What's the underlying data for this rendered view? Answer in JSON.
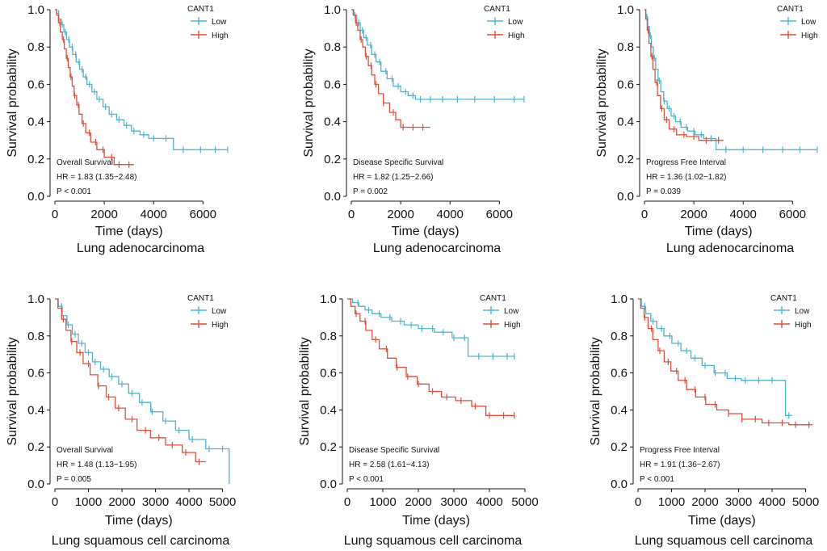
{
  "colors": {
    "low": "#4fb3cf",
    "high": "#dd4f3a",
    "axis": "#111111"
  },
  "chart_data": [
    {
      "type": "line",
      "title": "Lung adenocarcinoma",
      "xlabel": "Time (days)",
      "ylabel": "Survival probability",
      "xlim": [
        0,
        7200
      ],
      "xticks": [
        "0",
        "2000",
        "4000",
        "6000"
      ],
      "ylim": [
        0,
        1
      ],
      "yticks": [
        "0.0",
        "0.2",
        "0.4",
        "0.6",
        "0.8",
        "1.0"
      ],
      "legend_title": "CANT1",
      "annotations": [
        "Overall Survival",
        "HR = 1.83 (1.35−2.48)",
        "P < 0.001"
      ],
      "series": [
        {
          "name": "Low",
          "color_key": "low",
          "x": [
            0,
            80,
            160,
            260,
            360,
            470,
            590,
            720,
            860,
            1000,
            1150,
            1300,
            1500,
            1700,
            1950,
            2200,
            2500,
            2800,
            3100,
            3450,
            3800,
            4250,
            4800,
            5300,
            6000,
            6500,
            7000
          ],
          "y": [
            1.0,
            0.98,
            0.95,
            0.92,
            0.88,
            0.84,
            0.8,
            0.76,
            0.72,
            0.68,
            0.64,
            0.6,
            0.56,
            0.52,
            0.48,
            0.44,
            0.41,
            0.38,
            0.35,
            0.33,
            0.31,
            0.31,
            0.25,
            0.25,
            0.25,
            0.25,
            0.25
          ],
          "censor_x": [
            150,
            300,
            420,
            560,
            700,
            840,
            980,
            1100,
            1250,
            1400,
            1600,
            1800,
            2050,
            2300,
            2600,
            2900,
            3200,
            3600,
            4000,
            4500,
            5200,
            5900,
            6500,
            7000
          ]
        },
        {
          "name": "High",
          "color_key": "high",
          "x": [
            0,
            70,
            140,
            220,
            300,
            380,
            460,
            540,
            620,
            700,
            780,
            880,
            980,
            1100,
            1250,
            1450,
            1700,
            2000,
            2400,
            3200
          ],
          "y": [
            1.0,
            0.97,
            0.93,
            0.88,
            0.84,
            0.79,
            0.74,
            0.69,
            0.64,
            0.59,
            0.54,
            0.49,
            0.44,
            0.39,
            0.34,
            0.29,
            0.25,
            0.21,
            0.17,
            0.17
          ],
          "censor_x": [
            200,
            350,
            500,
            650,
            800,
            950,
            1150,
            1400,
            1650,
            1950,
            2300,
            2600,
            3000
          ]
        }
      ]
    },
    {
      "type": "line",
      "title": "Lung adenocarcinoma",
      "xlabel": "Time (days)",
      "ylabel": "Survival probability",
      "xlim": [
        0,
        7200
      ],
      "xticks": [
        "0",
        "2000",
        "4000",
        "6000"
      ],
      "ylim": [
        0,
        1
      ],
      "yticks": [
        "0.0",
        "0.2",
        "0.4",
        "0.6",
        "0.8",
        "1.0"
      ],
      "legend_title": "CANT1",
      "annotations": [
        "Disease Specific Survival",
        "HR = 1.82 (1.25−2.66)",
        "P = 0.002"
      ],
      "series": [
        {
          "name": "Low",
          "color_key": "low",
          "x": [
            0,
            100,
            220,
            360,
            500,
            650,
            820,
            1000,
            1200,
            1450,
            1700,
            2000,
            2300,
            2600,
            3000,
            4000,
            5000,
            6000,
            7000
          ],
          "y": [
            1.0,
            0.97,
            0.93,
            0.89,
            0.85,
            0.81,
            0.76,
            0.72,
            0.67,
            0.63,
            0.59,
            0.56,
            0.54,
            0.52,
            0.52,
            0.52,
            0.52,
            0.52,
            0.52
          ],
          "censor_x": [
            150,
            300,
            450,
            600,
            780,
            950,
            1150,
            1400,
            1650,
            1900,
            2200,
            2500,
            2800,
            3200,
            3700,
            4300,
            5000,
            5800,
            6600,
            7000
          ]
        },
        {
          "name": "High",
          "color_key": "high",
          "x": [
            0,
            80,
            170,
            260,
            360,
            460,
            570,
            690,
            820,
            950,
            1100,
            1300,
            1550,
            1800,
            2000,
            2500,
            3200
          ],
          "y": [
            1.0,
            0.97,
            0.93,
            0.89,
            0.84,
            0.8,
            0.75,
            0.7,
            0.65,
            0.6,
            0.55,
            0.5,
            0.45,
            0.41,
            0.37,
            0.37,
            0.37
          ],
          "censor_x": [
            200,
            400,
            600,
            800,
            1000,
            1300,
            1700,
            2100,
            2500,
            2900
          ]
        }
      ]
    },
    {
      "type": "line",
      "title": "Lung adenocarcinoma",
      "xlabel": "Time (days)",
      "ylabel": "Survival probability",
      "xlim": [
        0,
        7200
      ],
      "xticks": [
        "0",
        "2000",
        "4000",
        "6000"
      ],
      "ylim": [
        0,
        1
      ],
      "yticks": [
        "0.0",
        "0.2",
        "0.4",
        "0.6",
        "0.8",
        "1.0"
      ],
      "legend_title": "CANT1",
      "annotations": [
        "Progress Free Interval",
        "HR = 1.36 (1.02−1.82)",
        "P = 0.039"
      ],
      "series": [
        {
          "name": "Low",
          "color_key": "low",
          "x": [
            0,
            60,
            130,
            200,
            280,
            360,
            450,
            550,
            660,
            780,
            920,
            1080,
            1260,
            1480,
            1750,
            2050,
            2400,
            2900,
            3500,
            5000,
            7000
          ],
          "y": [
            1.0,
            0.96,
            0.91,
            0.86,
            0.8,
            0.74,
            0.68,
            0.62,
            0.56,
            0.51,
            0.47,
            0.43,
            0.4,
            0.37,
            0.35,
            0.33,
            0.31,
            0.25,
            0.25,
            0.25,
            0.25
          ],
          "censor_x": [
            100,
            240,
            400,
            600,
            800,
            1000,
            1200,
            1450,
            1700,
            2000,
            2300,
            2700,
            3300,
            4000,
            4800,
            5600,
            6300,
            7000
          ]
        },
        {
          "name": "High",
          "color_key": "high",
          "x": [
            0,
            50,
            110,
            180,
            260,
            340,
            430,
            530,
            650,
            800,
            1000,
            1300,
            1700,
            2200,
            3200
          ],
          "y": [
            1.0,
            0.95,
            0.89,
            0.82,
            0.75,
            0.68,
            0.61,
            0.54,
            0.47,
            0.41,
            0.36,
            0.33,
            0.32,
            0.3,
            0.3
          ],
          "censor_x": [
            150,
            300,
            500,
            700,
            900,
            1200,
            1600,
            2000,
            2500,
            3000
          ]
        }
      ]
    },
    {
      "type": "line",
      "title": "Lung squamous cell carcinoma",
      "xlabel": "Time (days)",
      "ylabel": "Survival probability",
      "xlim": [
        0,
        5300
      ],
      "xticks": [
        "0",
        "1000",
        "2000",
        "3000",
        "4000",
        "5000"
      ],
      "ylim": [
        0,
        1
      ],
      "yticks": [
        "0.0",
        "0.2",
        "0.4",
        "0.6",
        "0.8",
        "1.0"
      ],
      "legend_title": "CANT1",
      "annotations": [
        "Overall Survival",
        "HR = 1.48 (1.13−1.95)",
        "P = 0.005"
      ],
      "series": [
        {
          "name": "Low",
          "color_key": "low",
          "x": [
            0,
            100,
            220,
            360,
            520,
            700,
            900,
            1120,
            1360,
            1620,
            1900,
            2200,
            2520,
            2860,
            3220,
            3600,
            4000,
            4500,
            5000,
            5200
          ],
          "y": [
            1.0,
            0.96,
            0.91,
            0.86,
            0.81,
            0.76,
            0.71,
            0.66,
            0.62,
            0.58,
            0.54,
            0.49,
            0.44,
            0.39,
            0.34,
            0.29,
            0.24,
            0.19,
            0.19,
            0.0
          ],
          "censor_x": [
            200,
            400,
            600,
            800,
            1000,
            1200,
            1450,
            1700,
            2000,
            2300,
            2600,
            2900,
            3300,
            3700,
            4100,
            4600,
            5000
          ]
        },
        {
          "name": "High",
          "color_key": "high",
          "x": [
            0,
            90,
            200,
            330,
            480,
            650,
            840,
            1050,
            1280,
            1530,
            1800,
            2100,
            2450,
            2850,
            3300,
            3800,
            4200,
            4500
          ],
          "y": [
            1.0,
            0.95,
            0.89,
            0.83,
            0.77,
            0.71,
            0.65,
            0.59,
            0.53,
            0.47,
            0.41,
            0.35,
            0.29,
            0.25,
            0.21,
            0.17,
            0.12,
            0.12
          ],
          "censor_x": [
            250,
            500,
            750,
            1000,
            1300,
            1600,
            1900,
            2300,
            2700,
            3100,
            3500,
            3900,
            4300
          ]
        }
      ]
    },
    {
      "type": "line",
      "title": "Lung squamous cell carcinoma",
      "xlabel": "Time (days)",
      "ylabel": "Survival probability",
      "xlim": [
        0,
        5000
      ],
      "xticks": [
        "0",
        "1000",
        "2000",
        "3000",
        "4000",
        "5000"
      ],
      "ylim": [
        0,
        1
      ],
      "yticks": [
        "0.0",
        "0.2",
        "0.4",
        "0.6",
        "0.8",
        "1.0"
      ],
      "legend_title": "CANT1",
      "annotations": [
        "Disease Specific Survival",
        "HR = 2.58 (1.61−4.13)",
        "P < 0.001"
      ],
      "series": [
        {
          "name": "Low",
          "color_key": "low",
          "x": [
            0,
            150,
            320,
            500,
            700,
            950,
            1250,
            1600,
            2000,
            2450,
            2950,
            3400,
            3800,
            4200,
            4700
          ],
          "y": [
            1.0,
            0.98,
            0.96,
            0.94,
            0.92,
            0.9,
            0.88,
            0.86,
            0.84,
            0.82,
            0.79,
            0.69,
            0.69,
            0.69,
            0.69
          ],
          "censor_x": [
            300,
            600,
            900,
            1200,
            1500,
            1800,
            2100,
            2400,
            2700,
            3000,
            3300,
            3700,
            4100,
            4500,
            4700
          ]
        },
        {
          "name": "High",
          "color_key": "high",
          "x": [
            0,
            100,
            220,
            360,
            520,
            700,
            900,
            1130,
            1380,
            1660,
            1970,
            2300,
            2650,
            3050,
            3500,
            3900,
            4700
          ],
          "y": [
            1.0,
            0.96,
            0.92,
            0.88,
            0.83,
            0.78,
            0.73,
            0.68,
            0.63,
            0.58,
            0.54,
            0.5,
            0.47,
            0.45,
            0.42,
            0.37,
            0.37
          ],
          "censor_x": [
            250,
            500,
            800,
            1100,
            1400,
            1700,
            2000,
            2400,
            2800,
            3200,
            3600,
            4000,
            4400,
            4700
          ]
        }
      ]
    },
    {
      "type": "line",
      "title": "Lung squamous cell carcinoma",
      "xlabel": "Time (days)",
      "ylabel": "Survival probability",
      "xlim": [
        0,
        5300
      ],
      "xticks": [
        "0",
        "1000",
        "2000",
        "3000",
        "4000",
        "5000"
      ],
      "ylim": [
        0,
        1
      ],
      "yticks": [
        "0.0",
        "0.2",
        "0.4",
        "0.6",
        "0.8",
        "1.0"
      ],
      "legend_title": "CANT1",
      "annotations": [
        "Progress Free Interval",
        "HR = 1.91 (1.36−2.67)",
        "P < 0.001"
      ],
      "series": [
        {
          "name": "Low",
          "color_key": "low",
          "x": [
            0,
            100,
            230,
            380,
            560,
            770,
            1010,
            1280,
            1580,
            1910,
            2270,
            2660,
            3080,
            4000,
            4400,
            4600
          ],
          "y": [
            1.0,
            0.96,
            0.92,
            0.88,
            0.84,
            0.8,
            0.76,
            0.72,
            0.68,
            0.64,
            0.6,
            0.57,
            0.56,
            0.56,
            0.37,
            0.37
          ],
          "censor_x": [
            200,
            450,
            700,
            950,
            1200,
            1450,
            1700,
            2000,
            2300,
            2600,
            2900,
            3200,
            3600,
            4000,
            4500
          ]
        },
        {
          "name": "High",
          "color_key": "high",
          "x": [
            0,
            80,
            180,
            300,
            440,
            600,
            780,
            980,
            1200,
            1450,
            1720,
            2020,
            2350,
            2700,
            3100,
            3700,
            4500,
            5200
          ],
          "y": [
            1.0,
            0.95,
            0.9,
            0.84,
            0.78,
            0.72,
            0.66,
            0.61,
            0.56,
            0.51,
            0.47,
            0.43,
            0.4,
            0.38,
            0.35,
            0.33,
            0.32,
            0.32
          ],
          "censor_x": [
            200,
            400,
            650,
            900,
            1150,
            1400,
            1700,
            2000,
            2300,
            2700,
            3100,
            3500,
            3900,
            4300,
            4700,
            5100
          ]
        }
      ]
    }
  ]
}
